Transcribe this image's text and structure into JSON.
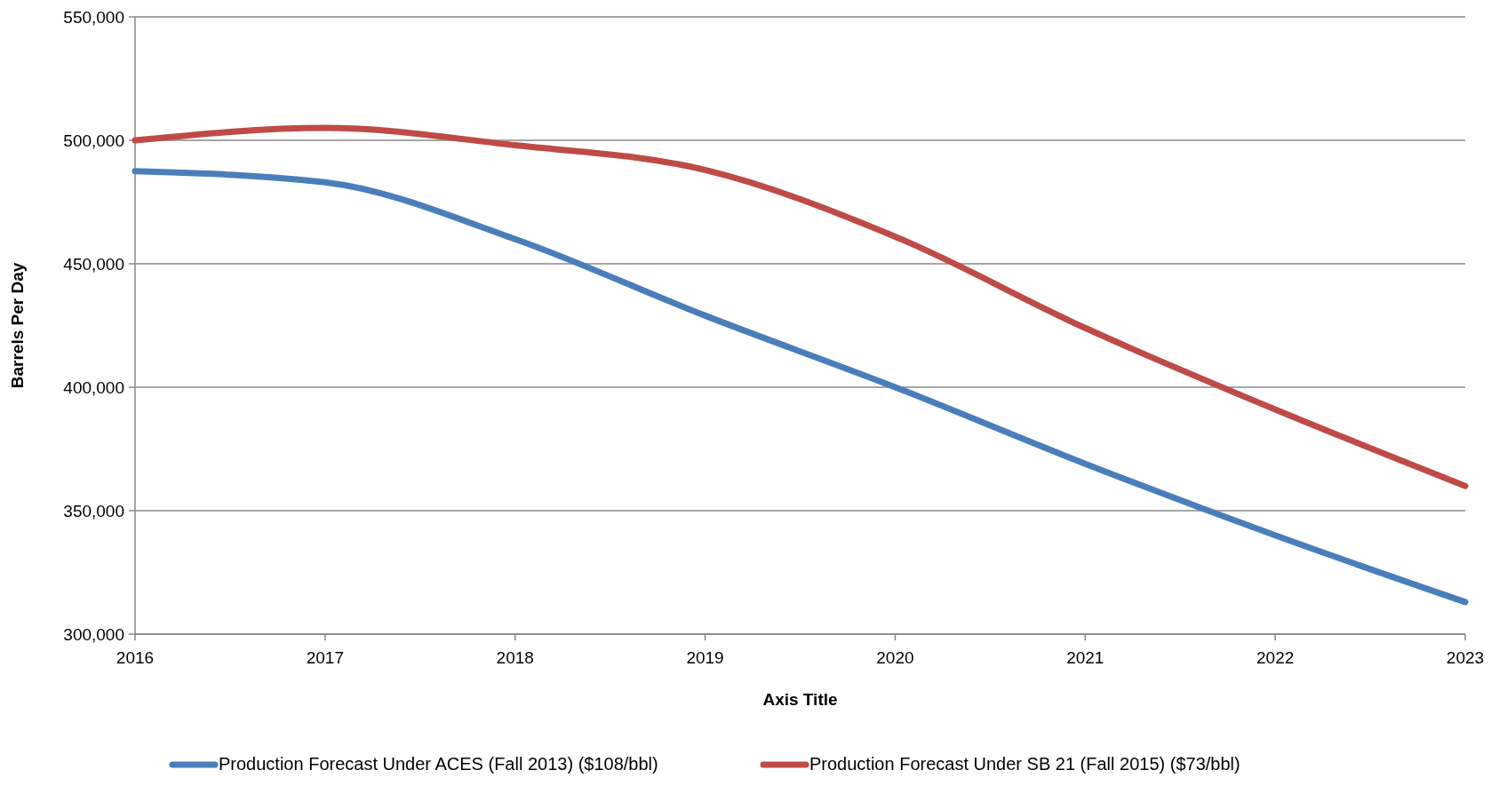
{
  "chart_data": {
    "type": "line",
    "xlabel": "Axis Title",
    "ylabel": "Barrels Per Day",
    "x": [
      2016,
      2017,
      2018,
      2019,
      2020,
      2021,
      2022,
      2023
    ],
    "xlim": [
      2016,
      2023
    ],
    "xticks": [
      2016,
      2017,
      2018,
      2019,
      2020,
      2021,
      2022,
      2023
    ],
    "ylim": [
      300000,
      550000
    ],
    "yticks": [
      {
        "value": 300000,
        "label": "300,000"
      },
      {
        "value": 350000,
        "label": "350,000"
      },
      {
        "value": 400000,
        "label": "400,000"
      },
      {
        "value": 450000,
        "label": "450,000"
      },
      {
        "value": 500000,
        "label": "500,000"
      },
      {
        "value": 550000,
        "label": "550,000"
      }
    ],
    "grid": "y",
    "legend": "bottom",
    "marker": "none",
    "line_style": "solid",
    "series": [
      {
        "name": "Production Forecast Under ACES (Fall 2013) ($108/bbl)",
        "color": "#4a7ebb",
        "values": [
          487500,
          483000,
          460000,
          429000,
          400000,
          369000,
          340000,
          313000
        ]
      },
      {
        "name": "Production Forecast Under SB 21 (Fall 2015) ($73/bbl)",
        "color": "#be4b48",
        "values": [
          500000,
          505000,
          498000,
          488000,
          461000,
          424000,
          391000,
          360000
        ]
      }
    ]
  }
}
